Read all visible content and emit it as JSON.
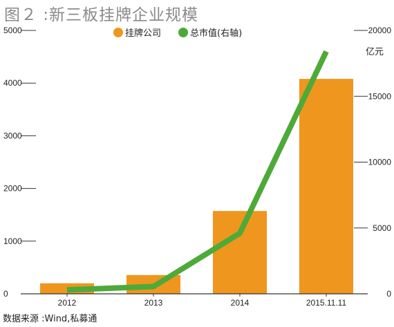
{
  "chart_data": {
    "type": "bar",
    "title": "图２ :新三板挂牌企业规模",
    "categories": [
      "2012",
      "2013",
      "2014",
      "2015.11.11"
    ],
    "series": [
      {
        "name": "挂牌公司",
        "type": "bar",
        "axis": "left",
        "color": "#ef961e",
        "values": [
          200,
          356,
          1572,
          4080
        ]
      },
      {
        "name": "总市值(右轴)",
        "type": "line",
        "axis": "right",
        "color": "#4eaa38",
        "values": [
          300,
          550,
          4600,
          18400
        ]
      }
    ],
    "y_left": {
      "min": 0,
      "max": 5000,
      "ticks": [
        0,
        1000,
        2000,
        3000,
        4000,
        5000
      ]
    },
    "y_right": {
      "min": 0,
      "max": 20000,
      "ticks": [
        0,
        5000,
        10000,
        15000,
        20000
      ],
      "unit": "亿元"
    },
    "legend_position": "top-center",
    "grid": false
  },
  "source": "数据来源 :Wind,私募通"
}
